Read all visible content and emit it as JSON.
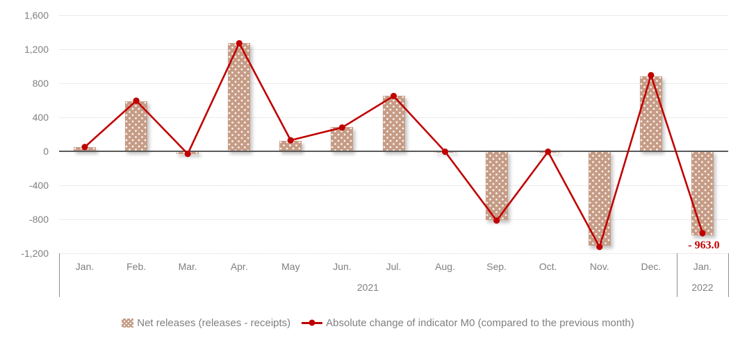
{
  "chart_data": {
    "type": "bar+line combo",
    "categories": [
      "Jan.",
      "Feb.",
      "Mar.",
      "Apr.",
      "May",
      "Jun.",
      "Jul.",
      "Aug.",
      "Sep.",
      "Oct.",
      "Nov.",
      "Dec.",
      "Jan."
    ],
    "year_groups": [
      {
        "label": "2021",
        "start": 0,
        "end": 11
      },
      {
        "label": "2022",
        "start": 12,
        "end": 12
      }
    ],
    "series": [
      {
        "name": "Net releases (releases - receipts)",
        "type": "bar",
        "values": [
          50,
          590,
          -35,
          1275,
          125,
          285,
          655,
          -20,
          -805,
          -20,
          -1110,
          885,
          -985
        ]
      },
      {
        "name": "Absolute change of indicator M0 (compared to the previous month)",
        "type": "line",
        "values": [
          50,
          595,
          -30,
          1270,
          130,
          280,
          650,
          -5,
          -815,
          -5,
          -1125,
          895,
          -963
        ]
      }
    ],
    "annotation": {
      "text": "- 963.0",
      "series_index": 1,
      "point_index": 12
    },
    "y_axis": {
      "min": -1200,
      "max": 1600,
      "step": 400,
      "tick_labels": [
        "1,600",
        "1,200",
        "800",
        "400",
        "0",
        "-400",
        "-800",
        "-1,200"
      ]
    },
    "grid": "horizontal dotted",
    "legend_position": "bottom center",
    "colors": {
      "bar_fill": "#c69c86",
      "bar_pattern_dots": "#ffffff",
      "line": "#c00000",
      "marker": "#c00000",
      "annotation_text": "#c00000",
      "axis_text": "#7f7f7f",
      "gridline": "#d6d6d6",
      "zero_axis_line": "#595959",
      "separator_line": "#8f8f8f"
    }
  },
  "legend": {
    "bar_label": "Net releases (releases - receipts)",
    "line_label": "Absolute change of indicator M0 (compared to the previous month)"
  }
}
